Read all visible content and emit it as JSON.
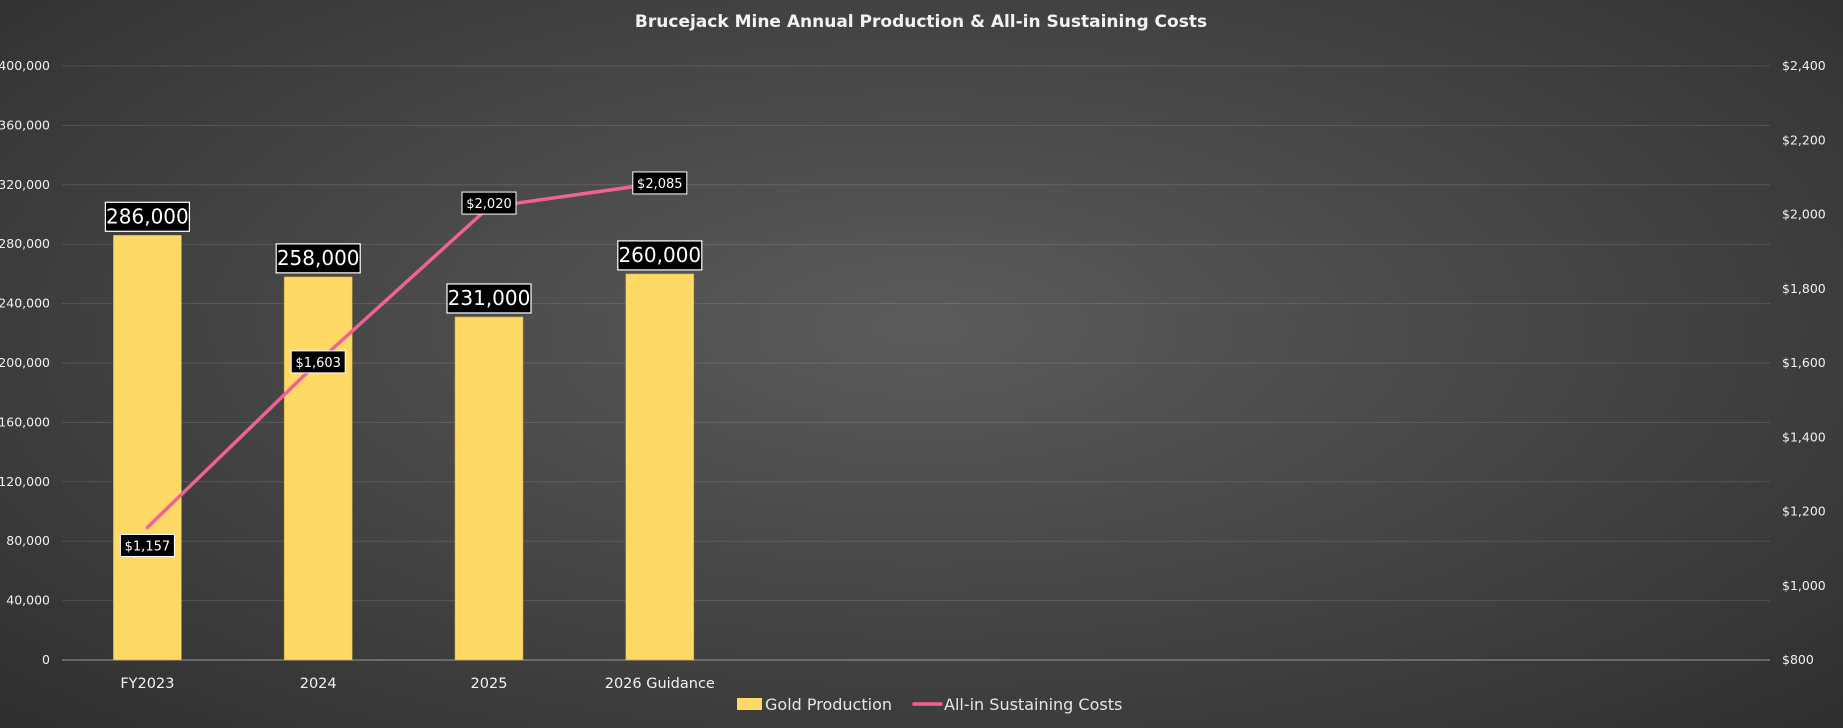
{
  "chart_data": {
    "type": "bar+line",
    "title": "Brucejack Mine Annual Production & All-in Sustaining Costs",
    "categories": [
      "FY2023",
      "2024",
      "2025",
      "2026 Guidance"
    ],
    "series": [
      {
        "name": "Gold Production",
        "type": "bar",
        "axis": "left",
        "color": "#ffd966",
        "values": [
          286000,
          258000,
          231000,
          260000
        ],
        "labels": [
          "286,000",
          "258,000",
          "231,000",
          "260,000"
        ]
      },
      {
        "name": "All-in Sustaining Costs",
        "type": "line",
        "axis": "right",
        "color": "#f06292",
        "values": [
          1157,
          1603,
          2020,
          2085
        ],
        "labels": [
          "$1,157",
          "$1,603",
          "$2,020",
          "$2,085"
        ]
      }
    ],
    "y_left": {
      "min": 0,
      "max": 400000,
      "ticks": [
        0,
        40000,
        80000,
        120000,
        160000,
        200000,
        240000,
        280000,
        320000,
        360000,
        400000
      ],
      "tick_labels": [
        "0",
        "40,000",
        "80,000",
        "120,000",
        "160,000",
        "200,000",
        "240,000",
        "280,000",
        "320,000",
        "360,000",
        "400,000"
      ]
    },
    "y_right": {
      "min": 800,
      "max": 2400,
      "ticks": [
        800,
        1000,
        1200,
        1400,
        1600,
        1800,
        2000,
        2200,
        2400
      ],
      "tick_labels": [
        "$800",
        "$1,000",
        "$1,200",
        "$1,400",
        "$1,600",
        "$1,800",
        "$2,000",
        "$2,200",
        "$2,400"
      ]
    },
    "category_slots": 10,
    "grid": true,
    "legend_position": "bottom"
  }
}
